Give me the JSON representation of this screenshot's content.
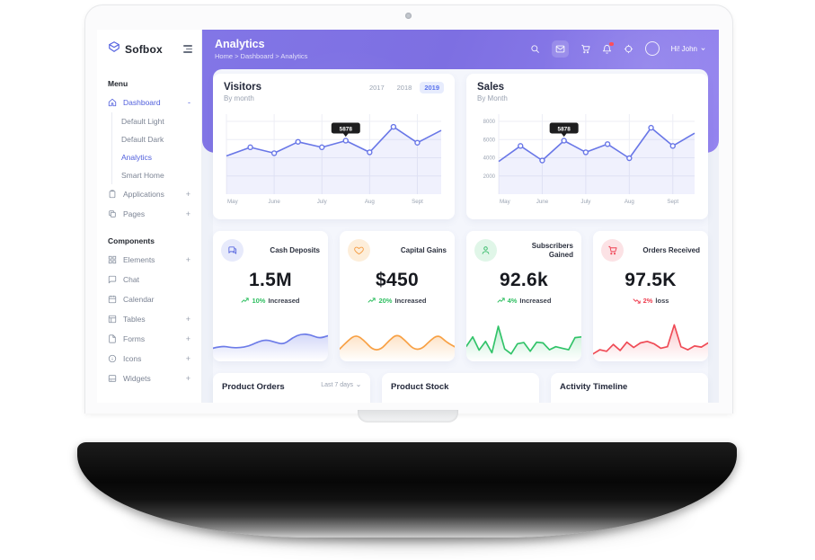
{
  "colors": {
    "primary": "#5260dd",
    "header_gradient_start": "#8276e6",
    "header_gradient_end": "#9484ef",
    "positive": "#2fbf61",
    "negative": "#ee3e50",
    "chart_line": "#6977e7"
  },
  "sidebar": {
    "logo_text": "Sofbox",
    "menu_label": "Menu",
    "components_label": "Components",
    "dashboard": {
      "label": "Dashboard",
      "expand": "-"
    },
    "dashboard_children": [
      {
        "label": "Default Light"
      },
      {
        "label": "Default Dark"
      },
      {
        "label": "Analytics"
      },
      {
        "label": "Smart Home"
      }
    ],
    "items_top": [
      {
        "label": "Applications",
        "expand": "+"
      },
      {
        "label": "Pages",
        "expand": "+"
      }
    ],
    "items_components": [
      {
        "label": "Elements",
        "expand": "+"
      },
      {
        "label": "Chat",
        "expand": ""
      },
      {
        "label": "Calendar",
        "expand": ""
      },
      {
        "label": "Tables",
        "expand": "+"
      },
      {
        "label": "Forms",
        "expand": "+"
      },
      {
        "label": "Icons",
        "expand": "+"
      },
      {
        "label": "Widgets",
        "expand": "+"
      }
    ]
  },
  "header": {
    "title": "Analytics",
    "breadcrumb": "Home > Dashboard > Analytics",
    "greeting": "Hi! John"
  },
  "chart_data": [
    {
      "id": "visitors",
      "type": "line",
      "title": "Visitors",
      "subtitle": "By month",
      "years": [
        "2017",
        "2018",
        "2019"
      ],
      "active_year": "2019",
      "x_labels": [
        "May",
        "June",
        "July",
        "Aug",
        "Sept"
      ],
      "values": [
        4200,
        5150,
        4500,
        5750,
        5150,
        5878,
        4600,
        7400,
        5650,
        7000
      ],
      "tooltip": {
        "index": 5,
        "value": "5878"
      },
      "ylim": [
        0,
        8000
      ],
      "y_ticks": [
        2000,
        4000,
        6000,
        8000
      ],
      "show_y_labels": false,
      "legend": "none",
      "grid": true
    },
    {
      "id": "sales",
      "type": "line",
      "title": "Sales",
      "subtitle": "By Month",
      "x_labels": [
        "May",
        "June",
        "July",
        "Aug",
        "Sept"
      ],
      "values": [
        3600,
        5300,
        3700,
        5878,
        4600,
        5500,
        3950,
        7300,
        5300,
        6700
      ],
      "tooltip": {
        "index": 3,
        "value": "5878"
      },
      "ylim": [
        0,
        8000
      ],
      "y_ticks": [
        2000,
        4000,
        6000,
        8000
      ],
      "show_y_labels": true,
      "legend": "none",
      "grid": true
    }
  ],
  "stats": [
    {
      "label": "Cash Deposits",
      "value": "1.5M",
      "trend_pct": "10%",
      "trend_word": "Increased",
      "direction": "up",
      "trend_color": "#2fbf61",
      "icon": "chat",
      "icon_color": "#5b6ae0",
      "icon_bg": "#e7eafb",
      "sparkline": {
        "type": "area",
        "smooth": true,
        "color": "#6d7ce8",
        "values": [
          3.0,
          3.6,
          3.2,
          3.1,
          3.5,
          4.6,
          5.3,
          4.6,
          4.0,
          5.8,
          6.8,
          6.6,
          5.6,
          6.3
        ]
      }
    },
    {
      "label": "Capital Gains",
      "value": "$450",
      "trend_pct": "20%",
      "trend_word": "Increased",
      "direction": "up",
      "trend_color": "#2fbf61",
      "icon": "heart",
      "icon_color": "#f59d44",
      "icon_bg": "#fdeeda",
      "sparkline": {
        "type": "area",
        "smooth": true,
        "color": "#f8a145",
        "values": [
          2.8,
          5.0,
          6.6,
          5.0,
          2.6,
          2.6,
          5.0,
          6.8,
          5.0,
          2.7,
          2.8,
          5.0,
          6.6,
          4.6,
          3.4
        ]
      }
    },
    {
      "label": "Subscribers Gained",
      "value": "92.6k",
      "trend_pct": "4%",
      "trend_word": "Increased",
      "direction": "up",
      "trend_color": "#2fbf61",
      "icon": "user",
      "icon_color": "#2fb864",
      "icon_bg": "#e0f6e8",
      "sparkline": {
        "type": "area",
        "smooth": false,
        "color": "#31c369",
        "values": [
          3.5,
          6.0,
          2.5,
          4.8,
          1.8,
          8.8,
          2.8,
          1.5,
          4.2,
          4.5,
          2.2,
          4.6,
          4.4,
          2.6,
          3.4,
          3.0,
          2.6,
          5.8,
          6.0
        ]
      }
    },
    {
      "label": "Orders Received",
      "value": "97.5K",
      "trend_pct": "2%",
      "trend_word": "loss",
      "direction": "down",
      "trend_color": "#ee3e50",
      "icon": "cart",
      "icon_color": "#ee3e50",
      "icon_bg": "#fce2e5",
      "sparkline": {
        "type": "area",
        "smooth": false,
        "color": "#ef4b56",
        "values": [
          1.5,
          2.6,
          2.2,
          4.0,
          2.4,
          4.6,
          3.2,
          4.4,
          4.8,
          4.2,
          3.0,
          3.4,
          9.2,
          3.4,
          2.6,
          3.6,
          3.3,
          4.4
        ]
      }
    }
  ],
  "cards_bottom": [
    {
      "title": "Product Orders",
      "filter": "Last 7 days"
    },
    {
      "title": "Product Stock",
      "filter": ""
    },
    {
      "title": "Activity Timeline",
      "filter": ""
    }
  ]
}
